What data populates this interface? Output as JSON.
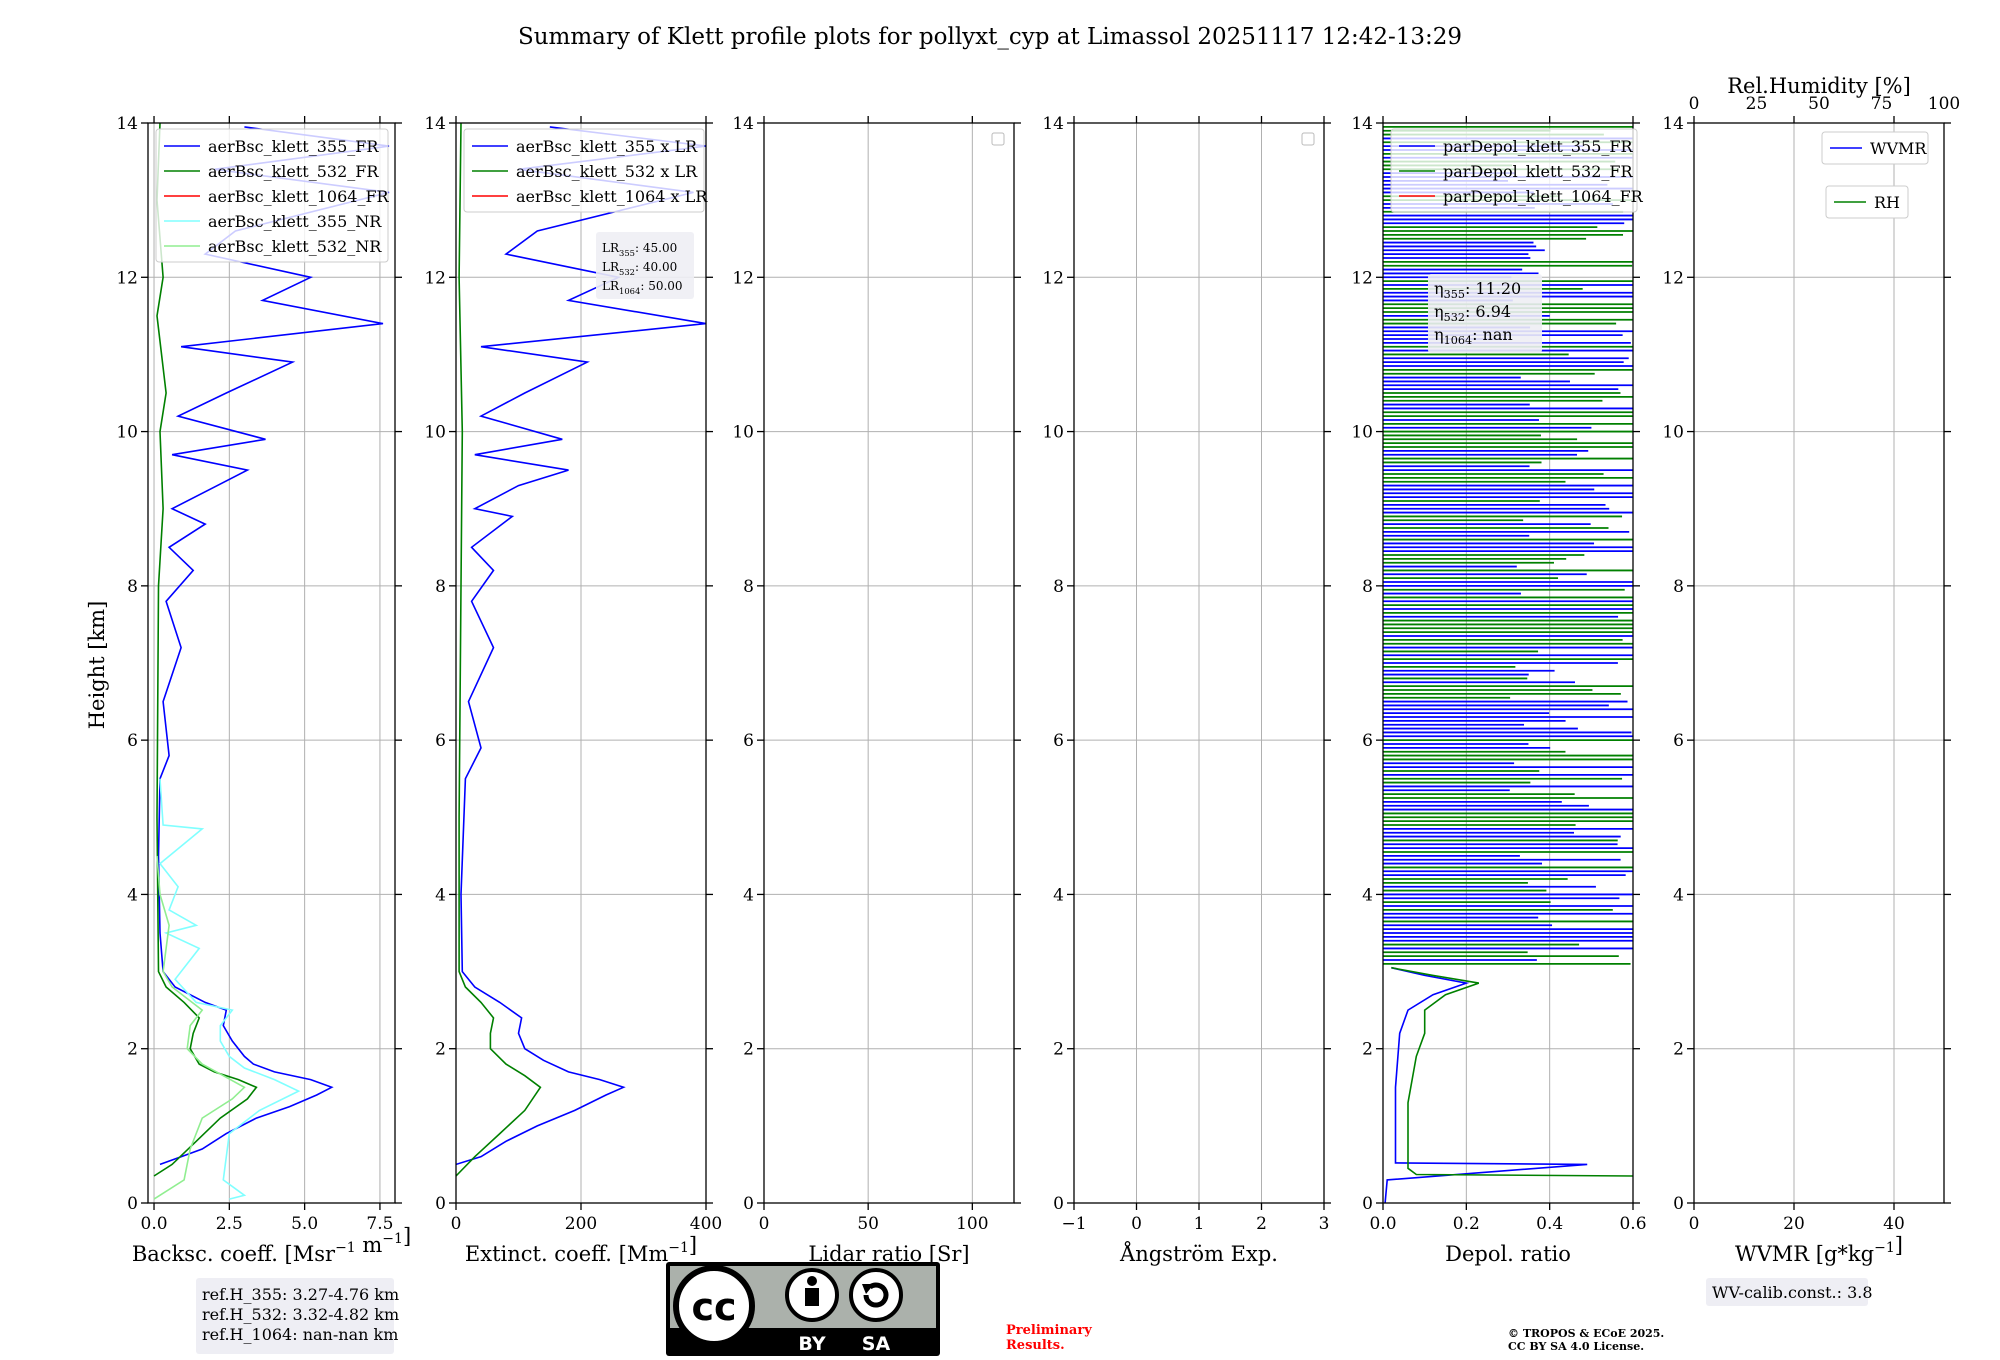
{
  "figure": {
    "title": "Summary of Klett profile plots for pollyxt_cyp at Limassol 20251117 12:42-13:29",
    "ylabel": "Height [km]"
  },
  "footer": {
    "ref_lines": [
      "ref.H_355: 3.27-4.76 km",
      "ref.H_532: 3.32-4.82 km",
      "ref.H_1064: nan-nan km"
    ],
    "preliminary": [
      "Preliminary",
      "Results."
    ],
    "copyright": [
      "© TROPOS & ECoE 2025.",
      "CC BY SA 4.0 License."
    ],
    "wv_calib": "WV-calib.const.: 3.8",
    "cc_badge": [
      "BY",
      "SA"
    ]
  },
  "colors": {
    "blue": "#0000ff",
    "green": "#008000",
    "red": "#ff0000",
    "cyan": "#80ffff",
    "lightgreen": "#90ee90",
    "grid": "#b0b0b0"
  },
  "chart_data": [
    {
      "id": "backscatter",
      "type": "line",
      "xlabel": "Backsc. coeff. [Msr$^{-1}$ m$^{-1}$]",
      "xlabel_text": "Backsc. coeff. [Msr",
      "xlabel_sup": "−1",
      "xlabel_mid": " m",
      "xlabel_sup2": "−1",
      "xlabel_end": "]",
      "xlim": [
        -0.2,
        8.0
      ],
      "xticks": [
        0.0,
        2.5,
        5.0,
        7.5
      ],
      "xtick_labels": [
        "0.0",
        "2.5",
        "5.0",
        "7.5"
      ],
      "ylim": [
        0,
        14
      ],
      "yticks": [
        0,
        2,
        4,
        6,
        8,
        10,
        12,
        14
      ],
      "legend": [
        "aerBsc_klett_355_FR",
        "aerBsc_klett_532_FR",
        "aerBsc_klett_1064_FR",
        "aerBsc_klett_355_NR",
        "aerBsc_klett_532_NR"
      ],
      "series": [
        {
          "name": "aerBsc_klett_355_FR",
          "color": "blue",
          "points": [
            [
              0.2,
              0.5
            ],
            [
              0.9,
              0.6
            ],
            [
              1.6,
              0.7
            ],
            [
              2.4,
              0.9
            ],
            [
              3.4,
              1.1
            ],
            [
              4.5,
              1.25
            ],
            [
              5.4,
              1.4
            ],
            [
              5.9,
              1.5
            ],
            [
              5.2,
              1.6
            ],
            [
              4.0,
              1.7
            ],
            [
              3.3,
              1.8
            ],
            [
              3.0,
              1.9
            ],
            [
              2.6,
              2.1
            ],
            [
              2.3,
              2.3
            ],
            [
              2.4,
              2.5
            ],
            [
              1.7,
              2.6
            ],
            [
              0.7,
              2.8
            ],
            [
              0.3,
              3.0
            ],
            [
              0.2,
              3.5
            ],
            [
              0.15,
              4.5
            ],
            [
              0.2,
              5.5
            ],
            [
              0.5,
              5.8
            ],
            [
              0.3,
              6.5
            ],
            [
              0.9,
              7.2
            ],
            [
              0.4,
              7.8
            ],
            [
              1.3,
              8.2
            ],
            [
              0.5,
              8.5
            ],
            [
              1.7,
              8.8
            ],
            [
              0.6,
              9.0
            ],
            [
              2.1,
              9.3
            ],
            [
              3.1,
              9.5
            ],
            [
              0.6,
              9.7
            ],
            [
              3.7,
              9.9
            ],
            [
              0.8,
              10.2
            ],
            [
              2.4,
              10.5
            ],
            [
              4.6,
              10.9
            ],
            [
              0.9,
              11.1
            ],
            [
              7.6,
              11.4
            ],
            [
              3.6,
              11.7
            ],
            [
              5.2,
              12.0
            ],
            [
              1.7,
              12.3
            ],
            [
              2.7,
              12.6
            ],
            [
              7.8,
              13.1
            ],
            [
              2.0,
              13.4
            ],
            [
              7.8,
              13.7
            ],
            [
              3.0,
              13.95
            ]
          ]
        },
        {
          "name": "aerBsc_klett_532_FR",
          "color": "green",
          "points": [
            [
              0.0,
              0.35
            ],
            [
              0.6,
              0.5
            ],
            [
              1.4,
              0.8
            ],
            [
              2.2,
              1.1
            ],
            [
              3.1,
              1.35
            ],
            [
              3.4,
              1.5
            ],
            [
              2.8,
              1.6
            ],
            [
              2.0,
              1.7
            ],
            [
              1.5,
              1.8
            ],
            [
              1.2,
              2.0
            ],
            [
              1.3,
              2.2
            ],
            [
              1.5,
              2.4
            ],
            [
              1.0,
              2.6
            ],
            [
              0.4,
              2.8
            ],
            [
              0.15,
              3.0
            ],
            [
              0.1,
              5.0
            ],
            [
              0.15,
              8.0
            ],
            [
              0.3,
              9.0
            ],
            [
              0.2,
              10.0
            ],
            [
              0.4,
              10.5
            ],
            [
              0.1,
              11.5
            ],
            [
              0.3,
              12.0
            ],
            [
              0.1,
              13.0
            ],
            [
              0.2,
              14.0
            ]
          ]
        },
        {
          "name": "aerBsc_klett_355_NR",
          "color": "cyan",
          "points": [
            [
              2.5,
              0.05
            ],
            [
              3.0,
              0.1
            ],
            [
              2.3,
              0.3
            ],
            [
              2.4,
              0.6
            ],
            [
              2.5,
              0.9
            ],
            [
              3.5,
              1.2
            ],
            [
              4.8,
              1.45
            ],
            [
              4.0,
              1.6
            ],
            [
              3.0,
              1.75
            ],
            [
              2.5,
              1.9
            ],
            [
              2.2,
              2.1
            ],
            [
              2.2,
              2.3
            ],
            [
              2.6,
              2.5
            ],
            [
              1.4,
              2.6
            ],
            [
              0.7,
              2.9
            ],
            [
              1.5,
              3.3
            ],
            [
              0.4,
              3.5
            ],
            [
              1.4,
              3.6
            ],
            [
              0.5,
              3.8
            ],
            [
              0.8,
              4.1
            ],
            [
              0.2,
              4.4
            ],
            [
              1.6,
              4.85
            ],
            [
              0.3,
              4.9
            ],
            [
              0.2,
              5.5
            ]
          ]
        },
        {
          "name": "aerBsc_klett_532_NR",
          "color": "lightgreen",
          "points": [
            [
              0.0,
              0.05
            ],
            [
              1.0,
              0.3
            ],
            [
              1.2,
              0.7
            ],
            [
              1.6,
              1.1
            ],
            [
              2.6,
              1.35
            ],
            [
              3.0,
              1.5
            ],
            [
              2.3,
              1.65
            ],
            [
              1.6,
              1.8
            ],
            [
              1.1,
              2.0
            ],
            [
              1.2,
              2.3
            ],
            [
              1.6,
              2.5
            ],
            [
              0.6,
              2.8
            ],
            [
              0.3,
              3.0
            ],
            [
              0.5,
              3.6
            ],
            [
              0.2,
              4.0
            ],
            [
              0.1,
              4.5
            ]
          ]
        }
      ],
      "annotation": []
    },
    {
      "id": "extinction",
      "type": "line",
      "xlabel_text": "Extinct. coeff. [Mm",
      "xlabel_sup": "−1",
      "xlabel_end": "]",
      "xlim": [
        0,
        400
      ],
      "xticks": [
        0,
        200,
        400
      ],
      "xtick_labels": [
        "0",
        "200",
        "400"
      ],
      "ylim": [
        0,
        14
      ],
      "yticks": [
        0,
        2,
        4,
        6,
        8,
        10,
        12,
        14
      ],
      "legend": [
        "aerBsc_klett_355 x LR",
        "aerBsc_klett_532 x LR",
        "aerBsc_klett_1064 x LR"
      ],
      "series": [
        {
          "name": "aerBsc_klett_355 x LR",
          "color": "blue",
          "points": [
            [
              0,
              0.5
            ],
            [
              40,
              0.6
            ],
            [
              80,
              0.8
            ],
            [
              130,
              1.0
            ],
            [
              190,
              1.2
            ],
            [
              240,
              1.4
            ],
            [
              268,
              1.5
            ],
            [
              230,
              1.6
            ],
            [
              180,
              1.7
            ],
            [
              140,
              1.85
            ],
            [
              110,
              2.0
            ],
            [
              100,
              2.2
            ],
            [
              105,
              2.4
            ],
            [
              70,
              2.6
            ],
            [
              30,
              2.8
            ],
            [
              10,
              3.0
            ],
            [
              8,
              4.0
            ],
            [
              15,
              5.5
            ],
            [
              40,
              5.9
            ],
            [
              20,
              6.5
            ],
            [
              60,
              7.2
            ],
            [
              25,
              7.8
            ],
            [
              60,
              8.2
            ],
            [
              25,
              8.5
            ],
            [
              90,
              8.9
            ],
            [
              30,
              9.0
            ],
            [
              100,
              9.3
            ],
            [
              180,
              9.5
            ],
            [
              30,
              9.7
            ],
            [
              170,
              9.9
            ],
            [
              40,
              10.2
            ],
            [
              110,
              10.5
            ],
            [
              210,
              10.9
            ],
            [
              40,
              11.1
            ],
            [
              400,
              11.4
            ],
            [
              180,
              11.7
            ],
            [
              260,
              12.0
            ],
            [
              80,
              12.3
            ],
            [
              130,
              12.6
            ],
            [
              380,
              13.1
            ],
            [
              100,
              13.4
            ],
            [
              400,
              13.7
            ],
            [
              150,
              13.95
            ]
          ]
        },
        {
          "name": "aerBsc_klett_532 x LR",
          "color": "green",
          "points": [
            [
              0,
              0.35
            ],
            [
              30,
              0.6
            ],
            [
              70,
              0.9
            ],
            [
              110,
              1.2
            ],
            [
              135,
              1.5
            ],
            [
              110,
              1.65
            ],
            [
              80,
              1.8
            ],
            [
              55,
              2.0
            ],
            [
              55,
              2.2
            ],
            [
              60,
              2.4
            ],
            [
              40,
              2.6
            ],
            [
              15,
              2.8
            ],
            [
              5,
              3.0
            ],
            [
              5,
              5.0
            ],
            [
              8,
              8.0
            ],
            [
              10,
              10.0
            ],
            [
              5,
              12.0
            ],
            [
              8,
              14.0
            ]
          ]
        }
      ],
      "annotation": [
        "LR355: 45.00",
        "LR532: 40.00",
        "LR1064: 50.00"
      ]
    },
    {
      "id": "lidar_ratio",
      "type": "line",
      "xlabel_text": "Lidar ratio [Sr]",
      "xlim": [
        0,
        120
      ],
      "xticks": [
        0,
        50,
        100
      ],
      "xtick_labels": [
        "0",
        "50",
        "100"
      ],
      "ylim": [
        0,
        14
      ],
      "yticks": [
        0,
        2,
        4,
        6,
        8,
        10,
        12,
        14
      ],
      "legend": [],
      "series": []
    },
    {
      "id": "angstrom",
      "type": "line",
      "xlabel_text": "Ångström Exp.",
      "xlim": [
        -1,
        3
      ],
      "xticks": [
        -1,
        0,
        1,
        2,
        3
      ],
      "xtick_labels": [
        "−1",
        "0",
        "1",
        "2",
        "3"
      ],
      "ylim": [
        0,
        14
      ],
      "yticks": [
        0,
        2,
        4,
        6,
        8,
        10,
        12,
        14
      ],
      "legend": [],
      "series": []
    },
    {
      "id": "depol",
      "type": "line",
      "xlabel_text": "Depol. ratio",
      "xlim": [
        0,
        0.6
      ],
      "xticks": [
        0.0,
        0.2,
        0.4,
        0.6
      ],
      "xtick_labels": [
        "0.0",
        "0.2",
        "0.4",
        "0.6"
      ],
      "ylim": [
        0,
        14
      ],
      "yticks": [
        0,
        2,
        4,
        6,
        8,
        10,
        12,
        14
      ],
      "legend": [
        "parDepol_klett_355_FR",
        "parDepol_klett_532_FR",
        "parDepol_klett_1064_FR"
      ],
      "series": [
        {
          "name": "parDepol_klett_355_FR",
          "color": "blue",
          "points": [
            [
              0.005,
              0.0
            ],
            [
              0.01,
              0.3
            ],
            [
              0.49,
              0.5
            ],
            [
              0.03,
              0.52
            ],
            [
              0.03,
              1.5
            ],
            [
              0.04,
              2.2
            ],
            [
              0.06,
              2.5
            ],
            [
              0.12,
              2.7
            ],
            [
              0.2,
              2.85
            ],
            [
              0.1,
              2.95
            ],
            [
              0.02,
              3.05
            ]
          ]
        },
        {
          "name": "parDepol_klett_532_FR",
          "color": "green",
          "points": [
            [
              0.6,
              0.35
            ],
            [
              0.08,
              0.37
            ],
            [
              0.06,
              0.45
            ],
            [
              0.06,
              1.3
            ],
            [
              0.08,
              1.9
            ],
            [
              0.1,
              2.2
            ],
            [
              0.1,
              2.5
            ],
            [
              0.15,
              2.7
            ],
            [
              0.23,
              2.85
            ],
            [
              0.12,
              2.95
            ],
            [
              0.02,
              3.05
            ]
          ]
        }
      ],
      "annotation": [
        "η355: 11.20",
        "η532: 6.94",
        "η1064: nan"
      ]
    },
    {
      "id": "wvmr",
      "type": "line",
      "xlabel_text": "WVMR [g*kg",
      "xlabel_sup": "−1",
      "xlabel_end": "]",
      "xlim": [
        0,
        50
      ],
      "xticks": [
        0,
        20,
        40
      ],
      "xtick_labels": [
        "0",
        "20",
        "40"
      ],
      "top_axis_label": "Rel.Humidity [%]",
      "top_xlim": [
        0,
        100
      ],
      "top_xticks": [
        0,
        25,
        50,
        75,
        100
      ],
      "top_xtick_labels": [
        "0",
        "25",
        "50",
        "75",
        "100"
      ],
      "ylim": [
        0,
        14
      ],
      "yticks": [
        0,
        2,
        4,
        6,
        8,
        10,
        12,
        14
      ],
      "legend": [
        "WVMR",
        "RH"
      ],
      "series": []
    }
  ]
}
